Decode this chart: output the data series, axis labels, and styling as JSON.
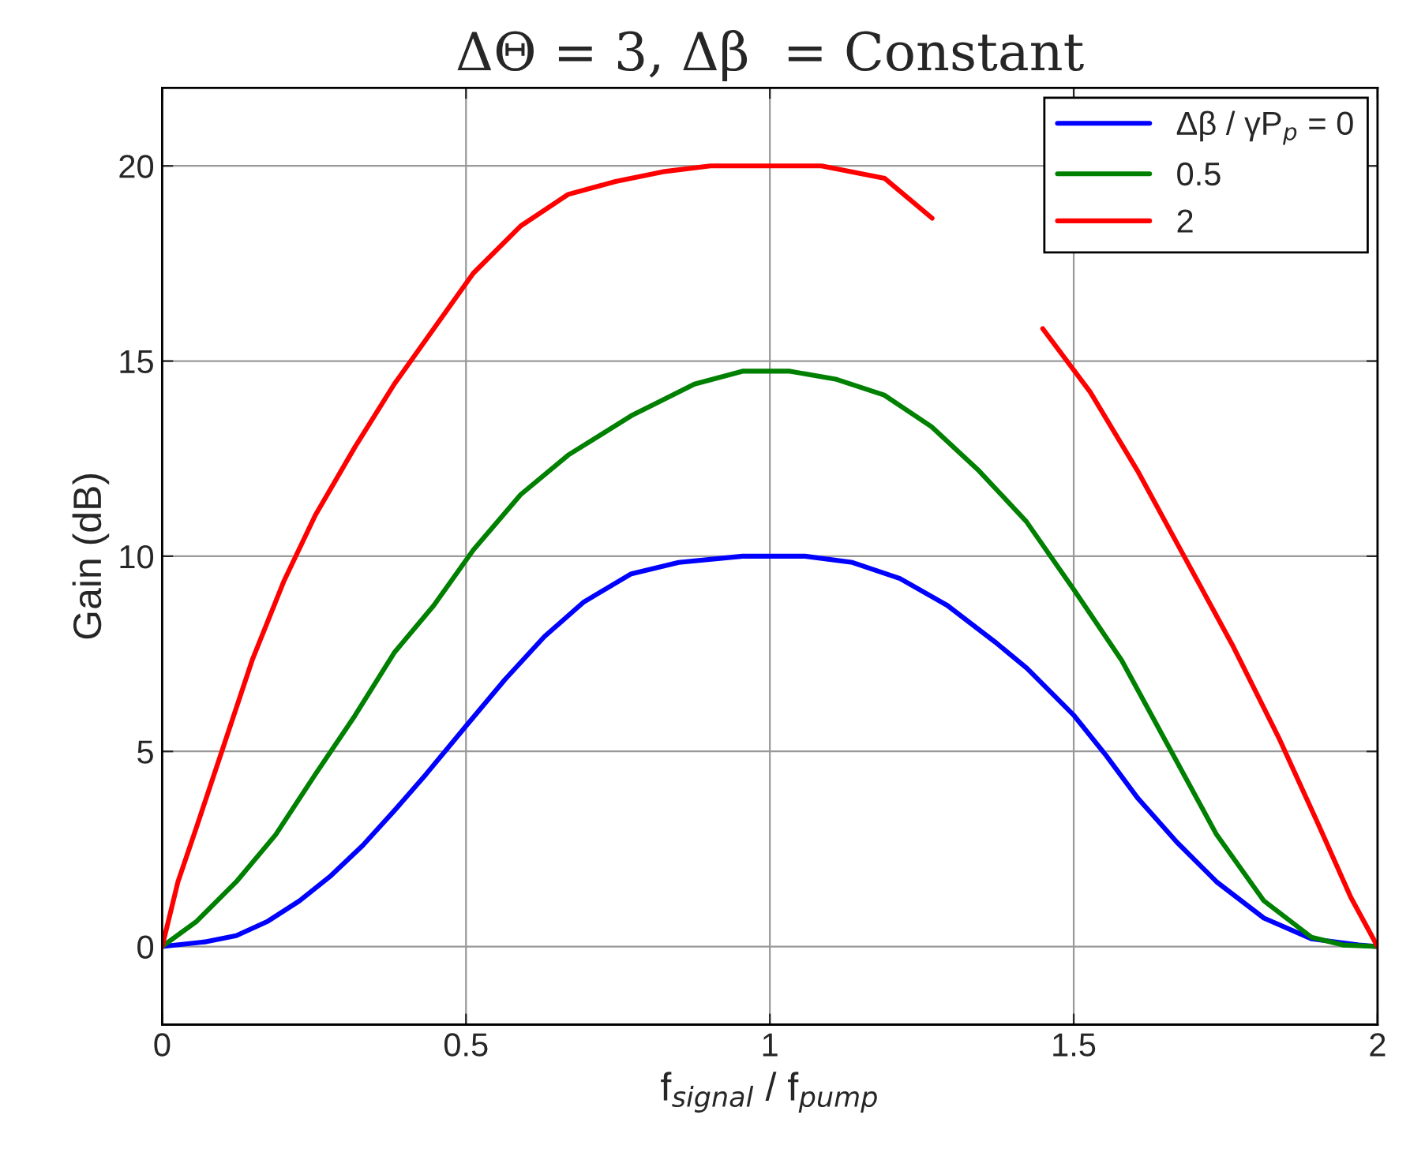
{
  "chart_data": {
    "type": "line",
    "title": "ΔΘ = 3, Δβ  = Constant",
    "xlabel": "f$_{signal}$ / f$_{pump}$",
    "ylabel": "Gain (dB)",
    "xlim": [
      0,
      2
    ],
    "ylim": [
      -2,
      22
    ],
    "xticks": [
      0,
      0.5,
      1,
      1.5,
      2
    ],
    "yticks": [
      0,
      5,
      10,
      15,
      20
    ],
    "grid": true,
    "legend": "top right",
    "line_style": "solid",
    "marker": "none",
    "series": [
      {
        "name": "Δβ / γP$_{p}$ = 0",
        "color": "#0000ff",
        "x": [
          0,
          0.07,
          0.122,
          0.174,
          0.226,
          0.278,
          0.33,
          0.382,
          0.434,
          0.499,
          0.564,
          0.629,
          0.694,
          0.772,
          0.85,
          0.955,
          1.058,
          1.136,
          1.214,
          1.292,
          1.37,
          1.423,
          1.501,
          1.553,
          1.605,
          1.67,
          1.735,
          1.813,
          1.891,
          1.969,
          2
        ],
        "values": [
          0,
          0.12,
          0.28,
          0.65,
          1.17,
          1.82,
          2.59,
          3.48,
          4.41,
          5.63,
          6.84,
          7.94,
          8.83,
          9.55,
          9.84,
          10.0,
          10.0,
          9.84,
          9.43,
          8.74,
          7.81,
          7.13,
          5.91,
          4.9,
          3.81,
          2.67,
          1.66,
          0.73,
          0.2,
          0.04,
          0
        ]
      },
      {
        "name": "0.5",
        "color": "#008000",
        "x": [
          0,
          0.057,
          0.122,
          0.187,
          0.252,
          0.317,
          0.382,
          0.447,
          0.512,
          0.59,
          0.668,
          0.772,
          0.876,
          0.955,
          1.033,
          1.11,
          1.188,
          1.266,
          1.344,
          1.422,
          1.5,
          1.579,
          1.657,
          1.735,
          1.813,
          1.891,
          1.943,
          2
        ],
        "values": [
          0,
          0.65,
          1.66,
          2.87,
          4.41,
          5.91,
          7.53,
          8.74,
          10.16,
          11.58,
          12.59,
          13.6,
          14.41,
          14.74,
          14.74,
          14.53,
          14.13,
          13.32,
          12.19,
          10.89,
          9.15,
          7.33,
          5.1,
          2.87,
          1.17,
          0.24,
          0.04,
          0
        ]
      },
      {
        "name": "2",
        "color": "#ff0000",
        "x": [
          0,
          0.026,
          0.057,
          0.096,
          0.148,
          0.2,
          0.252,
          0.317,
          0.382,
          0.447,
          0.512,
          0.59,
          0.668,
          0.746,
          0.824,
          0.902,
          1.085,
          1.189,
          1.267,
          1.35,
          1.449,
          1.527,
          1.605,
          1.683,
          1.761,
          1.839,
          1.904,
          1.956,
          2
        ],
        "values": [
          0,
          1.66,
          3.08,
          4.9,
          7.33,
          9.35,
          11.05,
          12.79,
          14.41,
          15.83,
          17.25,
          18.46,
          19.27,
          19.6,
          19.85,
          20.0,
          20.0,
          19.68,
          18.66,
          null,
          15.83,
          14.21,
          12.19,
          9.96,
          7.73,
          5.3,
          3.08,
          1.26,
          0
        ]
      }
    ]
  }
}
